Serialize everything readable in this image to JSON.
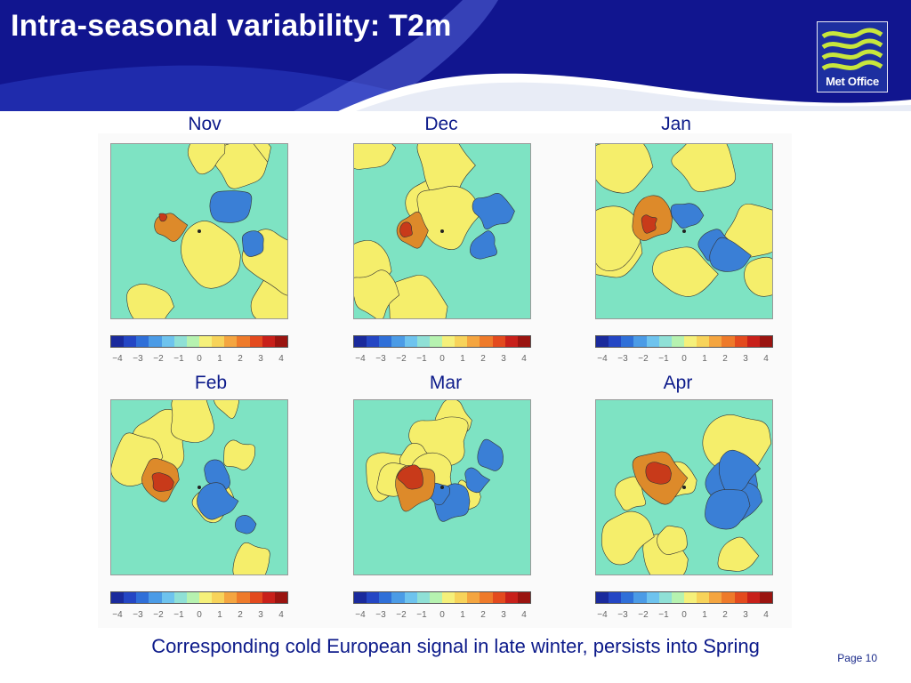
{
  "slide": {
    "title": "Intra-seasonal variability: T2m",
    "caption": "Corresponding cold European signal in late winter, persists into Spring",
    "page": "Page 10"
  },
  "logo": {
    "text": "Met Office",
    "icon": "waves-icon"
  },
  "panels": [
    {
      "month": "Nov"
    },
    {
      "month": "Dec"
    },
    {
      "month": "Jan"
    },
    {
      "month": "Feb"
    },
    {
      "month": "Mar"
    },
    {
      "month": "Apr"
    }
  ],
  "colorbar": {
    "ticks": [
      "−4",
      "−3",
      "−2",
      "−1",
      "0",
      "1",
      "2",
      "3",
      "4"
    ],
    "colors": [
      "#1a2a9c",
      "#2446c4",
      "#2f6fd8",
      "#4b9be6",
      "#6ec3ee",
      "#8fe0d6",
      "#b6f2b0",
      "#f5f07a",
      "#f7d35a",
      "#f4a540",
      "#ee7a2a",
      "#e34a1e",
      "#c8201a",
      "#9a1410"
    ]
  },
  "colors": {
    "header_bg": "#11158f",
    "title_text": "#ffffff",
    "caption_text": "#0c1a8a",
    "map_base": "#7ee3c3",
    "map_warm": "#f5ee6b",
    "map_hot": "#dd8a2a",
    "map_cold": "#3a7fd6"
  }
}
